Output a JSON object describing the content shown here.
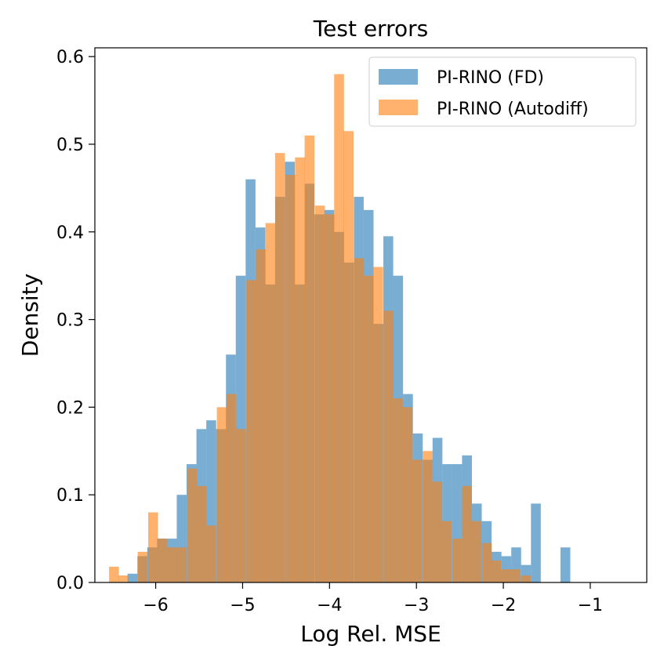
{
  "chart_data": {
    "type": "histogram",
    "title": "Test errors",
    "xlabel": "Log Rel. MSE",
    "ylabel": "Density",
    "xlim": [
      -6.7,
      -0.35
    ],
    "ylim": [
      0,
      0.61
    ],
    "xticks": [
      -6,
      -5,
      -4,
      -3,
      -2,
      -1
    ],
    "xtick_labels": [
      "−6",
      "−5",
      "−4",
      "−3",
      "−2",
      "−1"
    ],
    "yticks": [
      0.0,
      0.1,
      0.2,
      0.3,
      0.4,
      0.5,
      0.6
    ],
    "ytick_labels": [
      "0.0",
      "0.1",
      "0.2",
      "0.3",
      "0.4",
      "0.5",
      "0.6"
    ],
    "grid": false,
    "legend_position": "top-right",
    "series": [
      {
        "name": "PI-RINO (FD)",
        "color": "#1f77b4",
        "opacity": 0.6,
        "bin_start": -6.55,
        "bin_width": 0.1132,
        "values": [
          0.0,
          0.0,
          0.01,
          0.03,
          0.04,
          0.05,
          0.05,
          0.1,
          0.135,
          0.175,
          0.185,
          0.175,
          0.26,
          0.35,
          0.46,
          0.405,
          0.34,
          0.44,
          0.48,
          0.34,
          0.455,
          0.42,
          0.425,
          0.4,
          0.365,
          0.44,
          0.425,
          0.295,
          0.395,
          0.35,
          0.215,
          0.17,
          0.14,
          0.165,
          0.135,
          0.135,
          0.145,
          0.09,
          0.07,
          0.035,
          0.03,
          0.04,
          0.02,
          0.09,
          0.0,
          0.0,
          0.04,
          0.0,
          0.0,
          0.0,
          0.0,
          0.0,
          0.0,
          0.0
        ]
      },
      {
        "name": "PI-RINO (Autodiff)",
        "color": "#ff7f0e",
        "opacity": 0.6,
        "bin_start": -6.55,
        "bin_width": 0.2264,
        "values": [
          0.017,
          0.009,
          0.033,
          0.055,
          0.039,
          0.133,
          0.118,
          0.2,
          0.162,
          0.315,
          0.395,
          0.467,
          0.508,
          0.428,
          0.361,
          0.441,
          0.535,
          0.39,
          0.282,
          0.183,
          0.112,
          0.09,
          0.0455,
          0.033,
          0.0185,
          0.002
        ]
      }
    ]
  },
  "overlay": {
    "orange_bars": [
      {
        "x": -6.48,
        "v": 0.018
      },
      {
        "x": -6.37,
        "v": 0.008
      },
      {
        "x": -6.26,
        "v": 0.0
      },
      {
        "x": -6.15,
        "v": 0.035
      },
      {
        "x": -6.03,
        "v": 0.08
      },
      {
        "x": -5.92,
        "v": 0.05
      },
      {
        "x": -5.81,
        "v": 0.04
      },
      {
        "x": -5.7,
        "v": 0.04
      },
      {
        "x": -5.58,
        "v": 0.13
      },
      {
        "x": -5.47,
        "v": 0.11
      },
      {
        "x": -5.36,
        "v": 0.065
      },
      {
        "x": -5.24,
        "v": 0.2
      },
      {
        "x": -5.13,
        "v": 0.215
      },
      {
        "x": -5.02,
        "v": 0.175
      },
      {
        "x": -4.9,
        "v": 0.345
      },
      {
        "x": -4.79,
        "v": 0.38
      },
      {
        "x": -4.68,
        "v": 0.41
      },
      {
        "x": -4.57,
        "v": 0.49
      },
      {
        "x": -4.45,
        "v": 0.465
      },
      {
        "x": -4.34,
        "v": 0.485
      },
      {
        "x": -4.23,
        "v": 0.51
      },
      {
        "x": -4.11,
        "v": 0.43
      },
      {
        "x": -4.0,
        "v": 0.42
      },
      {
        "x": -3.89,
        "v": 0.58
      },
      {
        "x": -3.78,
        "v": 0.515
      },
      {
        "x": -3.66,
        "v": 0.37
      },
      {
        "x": -3.55,
        "v": 0.35
      },
      {
        "x": -3.44,
        "v": 0.36
      },
      {
        "x": -3.32,
        "v": 0.31
      },
      {
        "x": -3.21,
        "v": 0.21
      },
      {
        "x": -3.1,
        "v": 0.2
      },
      {
        "x": -2.99,
        "v": 0.14
      },
      {
        "x": -2.87,
        "v": 0.15
      },
      {
        "x": -2.76,
        "v": 0.115
      },
      {
        "x": -2.65,
        "v": 0.07
      },
      {
        "x": -2.53,
        "v": 0.05
      },
      {
        "x": -2.42,
        "v": 0.11
      },
      {
        "x": -2.31,
        "v": 0.07
      },
      {
        "x": -2.19,
        "v": 0.045
      },
      {
        "x": -2.08,
        "v": 0.025
      },
      {
        "x": -1.97,
        "v": 0.015
      },
      {
        "x": -1.86,
        "v": 0.015
      },
      {
        "x": -1.74,
        "v": 0.008
      }
    ]
  }
}
